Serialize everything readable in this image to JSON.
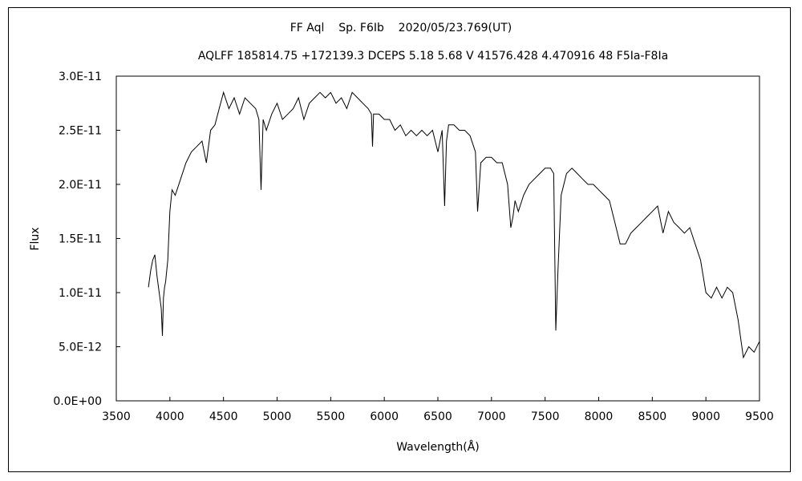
{
  "chart_data": {
    "type": "line",
    "title": "FF Aql    Sp. F6Ib    2020/05/23.769(UT)",
    "subtitle": "AQLFF 185814.75 +172139.3 DCEPS 5.18 5.68 V 41576.428 4.470916 48 F5Ia-F8Ia",
    "xlabel": "Wavelength(Å)",
    "ylabel": "Flux",
    "xlim": [
      3500,
      9500
    ],
    "ylim": [
      0,
      3e-11
    ],
    "x_ticks": [
      "3500",
      "4000",
      "4500",
      "5000",
      "5500",
      "6000",
      "6500",
      "7000",
      "7500",
      "8000",
      "8500",
      "9000",
      "9500"
    ],
    "y_ticks": [
      "0.0E+00",
      "5.0E-12",
      "1.0E-11",
      "1.5E-11",
      "2.0E-11",
      "2.5E-11",
      "3.0E-11"
    ],
    "grid": false,
    "series": [
      {
        "color": "#000000",
        "x": [
          3800,
          3820,
          3840,
          3860,
          3880,
          3900,
          3920,
          3930,
          3940,
          3950,
          3960,
          3980,
          4000,
          4020,
          4050,
          4100,
          4150,
          4200,
          4250,
          4300,
          4340,
          4380,
          4420,
          4460,
          4500,
          4550,
          4600,
          4650,
          4700,
          4750,
          4800,
          4830,
          4850,
          4861,
          4870,
          4900,
          4950,
          5000,
          5050,
          5100,
          5150,
          5200,
          5250,
          5300,
          5350,
          5400,
          5450,
          5500,
          5550,
          5600,
          5650,
          5700,
          5750,
          5800,
          5850,
          5880,
          5890,
          5900,
          5950,
          6000,
          6050,
          6100,
          6150,
          6200,
          6250,
          6300,
          6350,
          6400,
          6450,
          6500,
          6540,
          6563,
          6580,
          6600,
          6650,
          6700,
          6750,
          6800,
          6850,
          6870,
          6900,
          6950,
          7000,
          7050,
          7100,
          7150,
          7180,
          7200,
          7220,
          7250,
          7300,
          7350,
          7400,
          7450,
          7500,
          7550,
          7580,
          7600,
          7620,
          7650,
          7700,
          7750,
          7800,
          7850,
          7900,
          7950,
          8000,
          8050,
          8100,
          8150,
          8200,
          8250,
          8300,
          8350,
          8400,
          8450,
          8500,
          8550,
          8600,
          8650,
          8700,
          8750,
          8800,
          8850,
          8900,
          8950,
          9000,
          9050,
          9100,
          9150,
          9200,
          9250,
          9300,
          9350,
          9400,
          9450,
          9500
        ],
        "values": [
          1.05e-11,
          1.2e-11,
          1.3e-11,
          1.35e-11,
          1.15e-11,
          1e-11,
          8.5e-12,
          6e-12,
          9.5e-12,
          1.05e-11,
          1.1e-11,
          1.3e-11,
          1.75e-11,
          1.95e-11,
          1.9e-11,
          2.05e-11,
          2.2e-11,
          2.3e-11,
          2.35e-11,
          2.4e-11,
          2.2e-11,
          2.5e-11,
          2.55e-11,
          2.7e-11,
          2.85e-11,
          2.7e-11,
          2.8e-11,
          2.65e-11,
          2.8e-11,
          2.75e-11,
          2.7e-11,
          2.6e-11,
          1.95e-11,
          2.3e-11,
          2.6e-11,
          2.5e-11,
          2.65e-11,
          2.75e-11,
          2.6e-11,
          2.65e-11,
          2.7e-11,
          2.8e-11,
          2.6e-11,
          2.75e-11,
          2.8e-11,
          2.85e-11,
          2.8e-11,
          2.85e-11,
          2.75e-11,
          2.8e-11,
          2.7e-11,
          2.85e-11,
          2.8e-11,
          2.75e-11,
          2.7e-11,
          2.65e-11,
          2.35e-11,
          2.65e-11,
          2.65e-11,
          2.6e-11,
          2.6e-11,
          2.5e-11,
          2.55e-11,
          2.45e-11,
          2.5e-11,
          2.45e-11,
          2.5e-11,
          2.45e-11,
          2.5e-11,
          2.3e-11,
          2.5e-11,
          1.8e-11,
          2.4e-11,
          2.55e-11,
          2.55e-11,
          2.5e-11,
          2.5e-11,
          2.45e-11,
          2.3e-11,
          1.75e-11,
          2.2e-11,
          2.25e-11,
          2.25e-11,
          2.2e-11,
          2.2e-11,
          2e-11,
          1.6e-11,
          1.7e-11,
          1.85e-11,
          1.75e-11,
          1.9e-11,
          2e-11,
          2.05e-11,
          2.1e-11,
          2.15e-11,
          2.15e-11,
          2.1e-11,
          6.5e-12,
          1.2e-11,
          1.9e-11,
          2.1e-11,
          2.15e-11,
          2.1e-11,
          2.05e-11,
          2e-11,
          2e-11,
          1.95e-11,
          1.9e-11,
          1.85e-11,
          1.65e-11,
          1.45e-11,
          1.45e-11,
          1.55e-11,
          1.6e-11,
          1.65e-11,
          1.7e-11,
          1.75e-11,
          1.8e-11,
          1.55e-11,
          1.75e-11,
          1.65e-11,
          1.6e-11,
          1.55e-11,
          1.6e-11,
          1.45e-11,
          1.3e-11,
          1e-11,
          9.5e-12,
          1.05e-11,
          9.5e-12,
          1.05e-11,
          1e-11,
          7.5e-12,
          4e-12,
          5e-12,
          4.5e-12,
          5.5e-12
        ]
      }
    ]
  }
}
